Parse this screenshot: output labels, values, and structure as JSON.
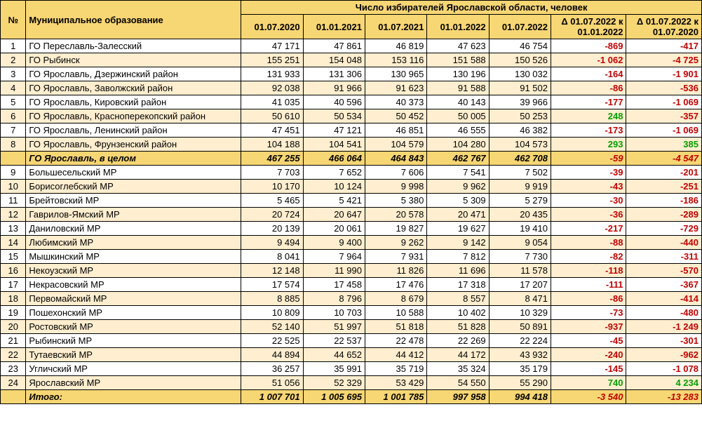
{
  "colors": {
    "header_bg": "#f7d674",
    "stripe_bg": "#ffeecf",
    "subtotal_bg": "#f7d674",
    "total_bg": "#f7d674",
    "border": "#000000",
    "neg": "#c00000",
    "pos": "#00a000",
    "text": "#000000"
  },
  "fontsize": 13,
  "header": {
    "num": "№",
    "name": "Муниципальное образование",
    "group": "Число избирателей Ярославской области, человек",
    "dates": [
      "01.07.2020",
      "01.01.2021",
      "01.07.2021",
      "01.01.2022",
      "01.07.2022"
    ],
    "delta1": "Δ 01.07.2022 к 01.01.2022",
    "delta2": "Δ 01.07.2022 к 01.07.2020"
  },
  "rows": [
    {
      "n": "1",
      "name": "ГО Переславль-Залесский",
      "v": [
        "47 171",
        "47 861",
        "46 819",
        "47 623",
        "46 754"
      ],
      "d1": "-869",
      "d2": "-417"
    },
    {
      "n": "2",
      "name": "ГО Рыбинск",
      "v": [
        "155 251",
        "154 048",
        "153 116",
        "151 588",
        "150 526"
      ],
      "d1": "-1 062",
      "d2": "-4 725"
    },
    {
      "n": "3",
      "name": "ГО Ярославль, Дзержинский район",
      "v": [
        "131 933",
        "131 306",
        "130 965",
        "130 196",
        "130 032"
      ],
      "d1": "-164",
      "d2": "-1 901"
    },
    {
      "n": "4",
      "name": "ГО Ярославль, Заволжский район",
      "v": [
        "92 038",
        "91 966",
        "91 623",
        "91 588",
        "91 502"
      ],
      "d1": "-86",
      "d2": "-536"
    },
    {
      "n": "5",
      "name": "ГО Ярославль, Кировский район",
      "v": [
        "41 035",
        "40 596",
        "40 373",
        "40 143",
        "39 966"
      ],
      "d1": "-177",
      "d2": "-1 069"
    },
    {
      "n": "6",
      "name": "ГО Ярославль, Красноперекопский район",
      "v": [
        "50 610",
        "50 534",
        "50 452",
        "50 005",
        "50 253"
      ],
      "d1": "248",
      "d2": "-357"
    },
    {
      "n": "7",
      "name": "ГО Ярославль, Ленинский район",
      "v": [
        "47 451",
        "47 121",
        "46 851",
        "46 555",
        "46 382"
      ],
      "d1": "-173",
      "d2": "-1 069"
    },
    {
      "n": "8",
      "name": "ГО Ярославль, Фрунзенский район",
      "v": [
        "104 188",
        "104 541",
        "104 579",
        "104 280",
        "104 573"
      ],
      "d1": "293",
      "d2": "385"
    },
    {
      "subtotal": true,
      "name": "ГО Ярославль, в целом",
      "v": [
        "467 255",
        "466 064",
        "464 843",
        "462 767",
        "462 708"
      ],
      "d1": "-59",
      "d2": "-4 547"
    },
    {
      "n": "9",
      "name": "Большесельский МР",
      "v": [
        "7 703",
        "7 652",
        "7 606",
        "7 541",
        "7 502"
      ],
      "d1": "-39",
      "d2": "-201"
    },
    {
      "n": "10",
      "name": "Борисоглебский МР",
      "v": [
        "10 170",
        "10 124",
        "9 998",
        "9 962",
        "9 919"
      ],
      "d1": "-43",
      "d2": "-251"
    },
    {
      "n": "11",
      "name": "Брейтовский МР",
      "v": [
        "5 465",
        "5 421",
        "5 380",
        "5 309",
        "5 279"
      ],
      "d1": "-30",
      "d2": "-186"
    },
    {
      "n": "12",
      "name": "Гаврилов-Ямский МР",
      "v": [
        "20 724",
        "20 647",
        "20 578",
        "20 471",
        "20 435"
      ],
      "d1": "-36",
      "d2": "-289"
    },
    {
      "n": "13",
      "name": "Даниловский МР",
      "v": [
        "20 139",
        "20 061",
        "19 827",
        "19 627",
        "19 410"
      ],
      "d1": "-217",
      "d2": "-729"
    },
    {
      "n": "14",
      "name": "Любимский МР",
      "v": [
        "9 494",
        "9 400",
        "9 262",
        "9 142",
        "9 054"
      ],
      "d1": "-88",
      "d2": "-440"
    },
    {
      "n": "15",
      "name": "Мышкинский МР",
      "v": [
        "8 041",
        "7 964",
        "7 931",
        "7 812",
        "7 730"
      ],
      "d1": "-82",
      "d2": "-311"
    },
    {
      "n": "16",
      "name": "Некоузский МР",
      "v": [
        "12 148",
        "11 990",
        "11 826",
        "11 696",
        "11 578"
      ],
      "d1": "-118",
      "d2": "-570"
    },
    {
      "n": "17",
      "name": "Некрасовский МР",
      "v": [
        "17 574",
        "17 458",
        "17 476",
        "17 318",
        "17 207"
      ],
      "d1": "-111",
      "d2": "-367"
    },
    {
      "n": "18",
      "name": "Первомайский МР",
      "v": [
        "8 885",
        "8 796",
        "8 679",
        "8 557",
        "8 471"
      ],
      "d1": "-86",
      "d2": "-414"
    },
    {
      "n": "19",
      "name": "Пошехонский МР",
      "v": [
        "10 809",
        "10 703",
        "10 588",
        "10 402",
        "10 329"
      ],
      "d1": "-73",
      "d2": "-480"
    },
    {
      "n": "20",
      "name": "Ростовский МР",
      "v": [
        "52 140",
        "51 997",
        "51 818",
        "51 828",
        "50 891"
      ],
      "d1": "-937",
      "d2": "-1 249"
    },
    {
      "n": "21",
      "name": "Рыбинский МР",
      "v": [
        "22 525",
        "22 537",
        "22 478",
        "22 269",
        "22 224"
      ],
      "d1": "-45",
      "d2": "-301"
    },
    {
      "n": "22",
      "name": "Тутаевский МР",
      "v": [
        "44 894",
        "44 652",
        "44 412",
        "44 172",
        "43 932"
      ],
      "d1": "-240",
      "d2": "-962"
    },
    {
      "n": "23",
      "name": "Угличский МР",
      "v": [
        "36 257",
        "35 991",
        "35 719",
        "35 324",
        "35 179"
      ],
      "d1": "-145",
      "d2": "-1 078"
    },
    {
      "n": "24",
      "name": "Ярославский МР",
      "v": [
        "51 056",
        "52 329",
        "53 429",
        "54 550",
        "55 290"
      ],
      "d1": "740",
      "d2": "4 234"
    },
    {
      "total": true,
      "name": "Итого:",
      "v": [
        "1 007 701",
        "1 005 695",
        "1 001 785",
        "997 958",
        "994 418"
      ],
      "d1": "-3 540",
      "d2": "-13 283"
    }
  ]
}
